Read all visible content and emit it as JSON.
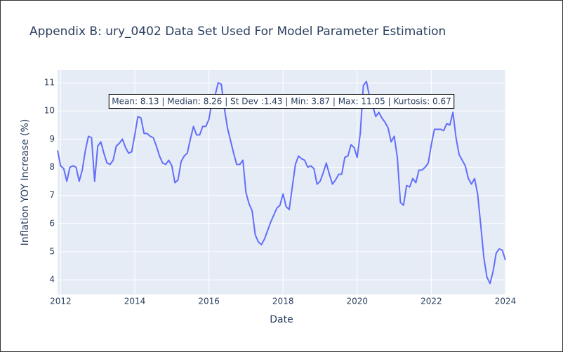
{
  "chart_data": {
    "type": "line",
    "title": "Appendix B: ury_0402 Data Set Used For Model Parameter Estimation",
    "xlabel": "Date",
    "ylabel": "Inflation YOY Increase (%)",
    "annotation": "Mean: 8.13 | Median: 8.26 | St Dev :1.43 | Min: 3.87 | Max: 11.05 | Kurtosis: 0.67",
    "color": "#636efa",
    "grid": true,
    "x": [
      "2011-12",
      "2012-01",
      "2012-02",
      "2012-03",
      "2012-04",
      "2012-05",
      "2012-06",
      "2012-07",
      "2012-08",
      "2012-09",
      "2012-10",
      "2012-11",
      "2012-12",
      "2013-01",
      "2013-02",
      "2013-03",
      "2013-04",
      "2013-05",
      "2013-06",
      "2013-07",
      "2013-08",
      "2013-09",
      "2013-10",
      "2013-11",
      "2013-12",
      "2014-01",
      "2014-02",
      "2014-03",
      "2014-04",
      "2014-05",
      "2014-06",
      "2014-07",
      "2014-08",
      "2014-09",
      "2014-10",
      "2014-11",
      "2014-12",
      "2015-01",
      "2015-02",
      "2015-03",
      "2015-04",
      "2015-05",
      "2015-06",
      "2015-07",
      "2015-08",
      "2015-09",
      "2015-10",
      "2015-11",
      "2015-12",
      "2016-01",
      "2016-02",
      "2016-03",
      "2016-04",
      "2016-05",
      "2016-06",
      "2016-07",
      "2016-08",
      "2016-09",
      "2016-10",
      "2016-11",
      "2016-12",
      "2017-01",
      "2017-02",
      "2017-03",
      "2017-04",
      "2017-05",
      "2017-06",
      "2017-07",
      "2017-08",
      "2017-09",
      "2017-10",
      "2017-11",
      "2017-12",
      "2018-01",
      "2018-02",
      "2018-03",
      "2018-04",
      "2018-05",
      "2018-06",
      "2018-07",
      "2018-08",
      "2018-09",
      "2018-10",
      "2018-11",
      "2018-12",
      "2019-01",
      "2019-02",
      "2019-03",
      "2019-04",
      "2019-05",
      "2019-06",
      "2019-07",
      "2019-08",
      "2019-09",
      "2019-10",
      "2019-11",
      "2019-12",
      "2020-01",
      "2020-02",
      "2020-03",
      "2020-04",
      "2020-05",
      "2020-06",
      "2020-07",
      "2020-08",
      "2020-09",
      "2020-10",
      "2020-11",
      "2020-12",
      "2021-01",
      "2021-02",
      "2021-03",
      "2021-04",
      "2021-05",
      "2021-06",
      "2021-07",
      "2021-08",
      "2021-09",
      "2021-10",
      "2021-11",
      "2021-12",
      "2022-01",
      "2022-02",
      "2022-03",
      "2022-04",
      "2022-05",
      "2022-06",
      "2022-07",
      "2022-08",
      "2022-09",
      "2022-10",
      "2022-11",
      "2022-12",
      "2023-01",
      "2023-02",
      "2023-03",
      "2023-04",
      "2023-05",
      "2023-06",
      "2023-07",
      "2023-08",
      "2023-09",
      "2023-10",
      "2023-11",
      "2023-12",
      "2024-01"
    ],
    "values": [
      8.6,
      8.05,
      7.95,
      7.5,
      8.0,
      8.05,
      8.0,
      7.5,
      7.9,
      8.6,
      9.1,
      9.05,
      7.5,
      8.75,
      8.9,
      8.5,
      8.15,
      8.1,
      8.25,
      8.75,
      8.85,
      9.0,
      8.7,
      8.5,
      8.55,
      9.15,
      9.8,
      9.75,
      9.2,
      9.2,
      9.1,
      9.05,
      8.75,
      8.4,
      8.15,
      8.1,
      8.25,
      8.05,
      7.45,
      7.55,
      8.2,
      8.4,
      8.5,
      9.0,
      9.45,
      9.15,
      9.15,
      9.45,
      9.45,
      9.7,
      10.35,
      10.55,
      11.0,
      10.95,
      10.1,
      9.4,
      8.95,
      8.5,
      8.1,
      8.1,
      8.25,
      7.1,
      6.7,
      6.45,
      5.6,
      5.35,
      5.25,
      5.45,
      5.75,
      6.05,
      6.3,
      6.55,
      6.65,
      7.05,
      6.6,
      6.5,
      7.3,
      8.1,
      8.4,
      8.3,
      8.25,
      8.0,
      8.05,
      7.95,
      7.4,
      7.5,
      7.8,
      8.15,
      7.75,
      7.4,
      7.55,
      7.75,
      7.75,
      8.35,
      8.4,
      8.8,
      8.7,
      8.35,
      9.2,
      10.9,
      11.05,
      10.5,
      10.2,
      9.8,
      9.95,
      9.75,
      9.6,
      9.4,
      8.9,
      9.1,
      8.35,
      6.75,
      6.65,
      7.35,
      7.3,
      7.6,
      7.45,
      7.9,
      7.9,
      8.0,
      8.15,
      8.8,
      9.35,
      9.35,
      9.35,
      9.3,
      9.55,
      9.5,
      9.95,
      9.05,
      8.45,
      8.25,
      8.05,
      7.6,
      7.4,
      7.6,
      7.05,
      5.95,
      4.8,
      4.1,
      3.87,
      4.3,
      4.95,
      5.1,
      5.05,
      4.7
    ],
    "xlim": [
      "2011-12",
      "2024-01"
    ],
    "xticks": [
      2012,
      2014,
      2016,
      2018,
      2020,
      2022,
      2024
    ],
    "ylim": [
      3.48,
      11.45
    ],
    "yticks": [
      4,
      5,
      6,
      7,
      8,
      9,
      10,
      11
    ]
  }
}
